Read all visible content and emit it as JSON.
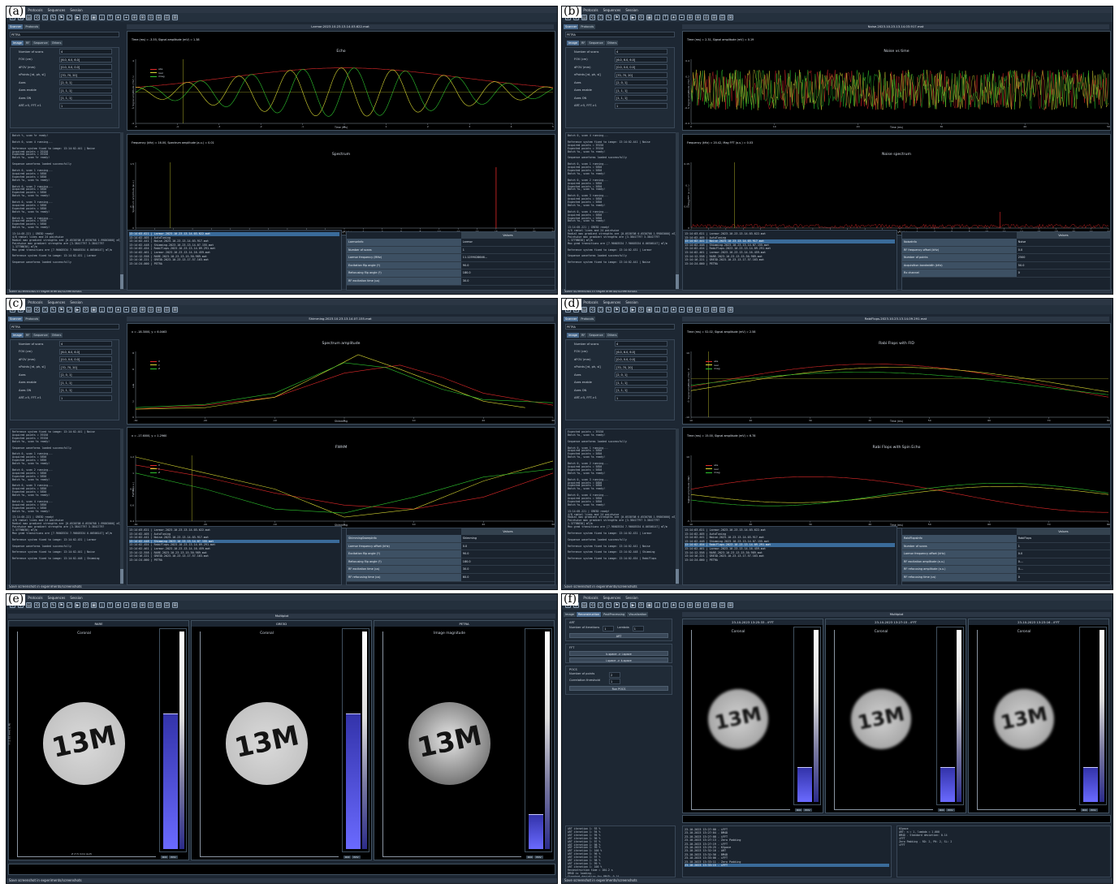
{
  "common": {
    "menu": [
      "Scanner",
      "Protocols",
      "Sequences",
      "Session"
    ],
    "tabs_main": [
      "Scanner",
      "Protocols"
    ],
    "sequence_select": "PETRA",
    "seq_tabs": [
      "Image",
      "RF",
      "Sequence",
      "Others"
    ],
    "status": "Save screenshot in experiments/screenshots",
    "params": [
      {
        "label": "Number of scans",
        "value": "4"
      },
      {
        "label": "FOV (cm)",
        "value": "[6.0, 6.0, 6.0]"
      },
      {
        "label": "dFOV (mm)",
        "value": "[0.0, 0.0, 0.0]"
      },
      {
        "label": "nPoints [rd, ph, sl]",
        "value": "[70, 70, 20]"
      },
      {
        "label": "Axes",
        "value": "[2, 0, 1]"
      },
      {
        "label": "Axes enable",
        "value": "[1, 1, 1]"
      },
      {
        "label": "Axes ON",
        "value": "[1, 1, 1]"
      },
      {
        "label": "ART->5, FFT->1",
        "value": "1"
      }
    ],
    "values_header": "Values"
  },
  "panels": {
    "a": {
      "tag": "(a)",
      "file_title": "Larmor.2023.10.23.13.14.03.622.mat",
      "console": "Batch %, scan %r ready!\n\nBatch 0, scan 4 running...\n\nReference system fixed to image: 13:14:02.441 | Noise\nAcquired points = 39150\nExpected points = 39150\nBatch %s, scan %r ready!\n\nSequence waveforms loaded successfully\n\nBatch 0, scan 1 running...\nAcquired points = 5850\nExpected points = 5850\nBatch %s, scan %s ready!\n\nBatch 0, scan 2 running...\nAcquired points = 5850\nExpected points = 5850\nBatch %s, scan %s ready!\n\nBatch 0, scan 3 running...\nAcquired points = 5850\nExpected points = 5850\nBatch %s, scan %s ready!\n\nBatch 0, scan 4 running...\nAcquired points = 5850\nExpected points = 5850\nBatch %s, scan %s ready!\n\n13:14:05.221 | GRE3D ready!\n4/8 radial lines and 24 pointwise\nRadial max gradient strengths are [0.0530708 0.0530708 1.99803000] mT/m\nPointwise max gradient strengths are [3.38417797 3.38417797\n1.37798630] mT/m\nMax grad transitions are [7.96603534 7.96603534 6.06506147] mT/m\n\nReference system fixed to image: 13:14:02.431 | Larmor\n\nSequence waveforms loaded successfully",
      "plot1": {
        "info": "Time (ms) = -3.55, Signal amplitude (mV) = 1.38",
        "heading": "Echo",
        "legend": [
          "abs",
          "real",
          "imag"
        ],
        "xlabel": "Time (ms)",
        "ylabel": "Signal amplitude (mV)"
      },
      "plot2": {
        "info": "Frequency (kHz) = 16.00, Spectrum amplitude (a.u.) = 0.01",
        "heading": "Spectrum",
        "xlabel": "Frequency (kHz)",
        "ylabel": "Spectrum amplitude (a.u.)"
      },
      "history": [
        "13:14:03.621 | Larmor.2023.10.23.13.14.03.622.mat",
        "13:14:02.405 | AutoTuning",
        "13:14:02.441 | Noise.2023.10.23.13.14.03.917.mat",
        "13:14:02.448 | Shimming.2023.10.23.13.14.07.155.mat",
        "13:14:02.454 | RabiFlops.2023.10.23.13.14.09.291.mat",
        "13:14:02.461 | Larmor.2023.10.23.13.14.16.459.mat",
        "13:14:12.558 | RARE.2023.10.23.13.15.30.989.mat",
        "13:14:16.221 | GRE3D.2023.10.23.13.17.57.163.mat",
        "13:14:24.000 | PETRA"
      ],
      "table": [
        [
          "LarmorInfo",
          "Larmor"
        ],
        [
          "Number of scans",
          "1"
        ],
        [
          "Larmor frequency (MHz)",
          "11.1259028646..."
        ],
        [
          "Excitation flip angle (º)",
          "90.0"
        ],
        [
          "Refocusing flip angle (º)",
          "180.0"
        ],
        [
          "RF excitation time (us)",
          "30.0"
        ]
      ]
    },
    "b": {
      "tag": "(b)",
      "file_title": "Noise.2023.10.23.13.14.03.917.mat",
      "console": "Batch 0, scan 4 running...\n\nReference system fixed to image: 13:14:02.441 | Noise\nAcquired points = 39150\nExpected points = 39150\nBatch %s, scan %s ready!\n\nSequence waveforms loaded successfully\n\nBatch 0, scan 1 running...\nAcquired points = 5850\nExpected points = 5850\nBatch %s, scan %s ready!\n\nBatch 0, scan 2 running...\nAcquired points = 5850\nExpected points = 5850\nBatch %s, scan %s ready!\n\nBatch 0, scan 3 running...\nAcquired points = 5850\nExpected points = 5850\nBatch %s, scan %s ready!\n\nBatch 0, scan 4 running...\nAcquired points = 5850\nExpected points = 5850\nBatch %s, scan %s ready!\n\n13:14:05.221 | GRE3D ready!\n4/8 radial lines and 24 pointwise\nRadial max gradient strengths are [0.0530708 0.0530708 1.99803000] mT/m\nPointwise max gradient strengths are [3.38417797 3.38417797\n1.37798630] mT/m\nMax grad transitions are [7.96603534 7.96603534 6.06506147] mT/m\n\nReference system fixed to image: 13:14:02.431 | Larmor\n\nSequence waveforms loaded successfully\n\nReference system fixed to image: 13:14:02.441 | Noise",
      "plot1": {
        "info": "Time (ms) = 2.31, Signal amplitude (mV) = 0.19",
        "heading": "Noise vs time",
        "xlabel": "Time (ms)",
        "ylabel": "Signal amplitude (mV)"
      },
      "plot2": {
        "info": "Frequency (kHz) = 20.42, Mag FFT (a.u.) = 0.03",
        "heading": "Noise spectrum",
        "xlabel": "Frequency (kHz)",
        "ylabel": "Mag FFT (a.u.)"
      },
      "history": [
        "13:14:03.621 | Larmor.2023.10.23.13.14.03.622.mat",
        "13:14:02.405 | AutoTuning",
        "13:14:02.441 | Noise.2023.10.23.13.14.03.917.mat",
        "13:14:02.448 | Shimming.2023.10.23.13.14.07.155.mat",
        "13:14:02.454 | RabiFlops.2023.10.23.13.14.09.291.mat",
        "13:14:02.461 | Larmor.2023.10.23.13.14.16.459.mat",
        "13:14:12.558 | RARE.2023.10.23.13.15.30.989.mat",
        "13:14:16.221 | GRE3D.2023.10.23.13.17.57.163.mat",
        "13:14:24.000 | PETRA"
      ],
      "table": [
        [
          "NoiseInfo",
          "Noise"
        ],
        [
          "RF frequency offset (kHz)",
          "0.0"
        ],
        [
          "Number of points",
          "2500"
        ],
        [
          "Acquisition bandwidth (kHz)",
          "50.0"
        ],
        [
          "Rx channel",
          "0"
        ]
      ]
    },
    "c": {
      "tag": "(c)",
      "file_title": "Shimming.2023.10.23.13.14.07.155.mat",
      "console": "Reference system fixed to image: 13:14:02.441 | Noise\nAcquired points = 39150\nExpected points = 39150\nBatch %s, scan %s ready!\n\nSequence waveforms loaded successfully\n\nBatch 0, scan 1 running...\nAcquired points = 5850\nExpected points = 5850\nBatch %s, scan %s ready!\n\nBatch 0, scan 2 running...\nAcquired points = 5850\nExpected points = 5850\nBatch %s, scan %s ready!\n\nBatch 0, scan 3 running...\nAcquired points = 5850\nExpected points = 5850\nBatch %s, scan %s ready!\n\nBatch 0, scan 4 running...\nAcquired points = 5850\nExpected points = 5850\nBatch %s, scan %s ready!\n\n13:14:05.221 | GRE3D ready!\n4/8 radial lines and 24 pointwise\nRadial max gradient strengths are [0.0530708 0.0530708 1.99803000] mT/m\nPointwise max gradient strengths are [3.38417797 3.38417797\n1.37798630] mT/m\nMax grad transitions are [7.96603534 7.96603534 6.06506147] mT/m\n\nReference system fixed to image: 13:14:02.431 | Larmor\n\nSequence waveforms loaded successfully\n\nReference system fixed to image: 13:14:02.441 | Noise\n\nReference system fixed to image: 13:14:02.448 | Shimming",
      "plot1": {
        "info": "x = -18.3000, y = 6.0463",
        "heading": "Spectrum amplitude",
        "legend": [
          "X",
          "Y",
          "Z"
        ],
        "xlabel": "Shimming",
        "ylabel": "a.u."
      },
      "plot2": {
        "info": "x = -17.6000, y = 1.2960",
        "heading": "FWHM",
        "legend": [
          "X",
          "Y",
          "Z"
        ],
        "xlabel": "Shimming",
        "ylabel": "FWHM (a.u.)"
      },
      "history": [
        "13:14:03.621 | Larmor.2023.10.23.13.14.03.622.mat",
        "13:14:02.405 | AutoTuning",
        "13:14:02.441 | Noise.2023.10.23.13.14.03.917.mat",
        "13:14:02.448 | Shimming.2023.10.23.13.14.07.155.mat",
        "13:14:02.454 | RabiFlops.2023.10.23.13.14.09.291.mat",
        "13:14:02.461 | Larmor.2023.10.23.13.14.16.459.mat",
        "13:14:12.558 | RARE.2023.10.23.13.15.30.989.mat",
        "13:14:16.221 | GRE3D.2023.10.23.13.17.57.163.mat",
        "13:14:24.000 | PETRA"
      ],
      "table": [
        [
          "ShimmingSweepInfo",
          "Shimming"
        ],
        [
          "Larmor frequency offset (kHz)",
          "0.0"
        ],
        [
          "Excitation flip angle (º)",
          "90.0"
        ],
        [
          "Refocusing flip angle (º)",
          "180.0"
        ],
        [
          "RF excitation time (us)",
          "30.0"
        ],
        [
          "RF refocusing time (us)",
          "60.0"
        ]
      ]
    },
    "d": {
      "tag": "(d)",
      "file_title": "RabiFlops.2023.10.23.13.14.09.291.mat",
      "console": "Expected points = 39150\nBatch %s, scan %s ready!\n\nSequence waveforms loaded successfully\n\nBatch 0, scan 1 running...\nAcquired points = 5850\nExpected points = 5850\nBatch %s, scan %s ready!\n\nBatch 0, scan 2 running...\nAcquired points = 5850\nExpected points = 5850\nBatch %s, scan %s ready!\n\nBatch 0, scan 3 running...\nAcquired points = 5850\nExpected points = 5850\nBatch %s, scan %s ready!\n\nBatch 0, scan 4 running...\nAcquired points = 5850\nExpected points = 5850\nBatch %s, scan %s ready!\n\n13:14:05.221 | GRE3D ready!\n4/8 radial lines and 24 pointwise\nRadial max gradient strengths are [0.0530708 0.0530708 1.99803000] mT/m\nPointwise max gradient strengths are [3.38417797 3.38417797\n1.37798630] mT/m\nMax grad transitions are [7.96603534 7.96603534 6.06506147] mT/m\n\nReference system fixed to image: 13:14:02.431 | Larmor\n\nSequence waveforms loaded successfully\n\nReference system fixed to image: 13:14:02.441 | Noise\n\nReference system fixed to image: 13:14:02.448 | Shimming\n\nReference system fixed to image: 13:14:02.454 | RabiFlops",
      "plot1": {
        "info": "Time (ms) = 52.02, Signal amplitude (mV) = 2.58",
        "heading": "Rabi Flops with FID",
        "legend": [
          "abs",
          "real",
          "imag"
        ],
        "xlabel": "Time (ms)",
        "ylabel": "Signal amplitude (mV)"
      },
      "plot2": {
        "info": "Time (ms) = 15.00, Signal amplitude (mV) = 6.78",
        "heading": "Rabi Flops with Spin Echo",
        "legend": [
          "abs",
          "real",
          "imag"
        ],
        "xlabel": "Time (ms)",
        "ylabel": "Signal amplitude (mV)"
      },
      "history": [
        "13:14:03.621 | Larmor.2023.10.23.13.14.03.622.mat",
        "13:14:02.405 | AutoTuning",
        "13:14:02.441 | Noise.2023.10.23.13.14.03.917.mat",
        "13:14:02.448 | Shimming.2023.10.23.13.14.07.155.mat",
        "13:14:02.454 | RabiFlops.2023.10.23.13.14.09.291.mat",
        "13:14:02.461 | Larmor.2023.10.23.13.14.16.459.mat",
        "13:14:12.558 | RARE.2023.10.23.13.15.30.989.mat",
        "13:14:16.221 | GRE3D.2023.10.23.13.17.57.163.mat",
        "13:14:24.000 | PETRA"
      ],
      "table": [
        [
          "RabiFlopsInfo",
          "RabiFlops"
        ],
        [
          "Number of scans",
          "1"
        ],
        [
          "Larmor frequency offset (kHz)",
          "0.0"
        ],
        [
          "RF excitation amplitude (a.u.)",
          "0...."
        ],
        [
          "RF refocusing amplitude (a.u.)",
          "0...."
        ],
        [
          "RF refocusing time (us)",
          "0"
        ]
      ]
    },
    "e": {
      "tag": "(e)",
      "title": "Multiplot",
      "images": [
        {
          "name": "RARE",
          "label": "Coronal"
        },
        {
          "name": "GRE3D",
          "label": "Coronal"
        },
        {
          "name": "PETRA",
          "label": "Image magnitude"
        }
      ],
      "phantom_text": "13M",
      "axis_y": "Y (1.93 mm) (L-R)",
      "axis_x": "Z (7.5 mm) (A-P)",
      "cbar_btns": [
        "ROI",
        "POV"
      ]
    },
    "f": {
      "tag": "(f)",
      "tabs": [
        "Image",
        "Reconstruction",
        "PostProcessing",
        "Visualization"
      ],
      "art_title": "ART",
      "art_fields": [
        {
          "label": "Number of iterations",
          "value": "1"
        },
        {
          "label": "Lambda",
          "value": "1"
        }
      ],
      "art_btn": "ART",
      "fft_title": "FFT",
      "fft_btns": [
        "k-space -> i-space",
        "i-space -> k-space"
      ],
      "pocs_title": "POCS",
      "pocs_fields": [
        {
          "label": "Number of points",
          "value": "2"
        },
        {
          "label": "Correlation threshold",
          "value": "1"
        }
      ],
      "pocs_btn": "Run POCS",
      "title": "Multiplot",
      "images": [
        {
          "name": "23-10-2023 13:25:33 - iFFT",
          "label": "Coronal"
        },
        {
          "name": "23-10-2023 13:27:15 - iFFT",
          "label": "Coronal"
        },
        {
          "name": "23-10-2023 13:23:16 - iFFT",
          "label": "Coronal"
        }
      ],
      "phantom_text": "13M",
      "console": "ART iteration 1: 93 %\nART iteration 1: 94 %\nART iteration 1: 95 %\nART iteration 1: 96 %\nART iteration 1: 97 %\nART iteration 1: 98 %\nART iteration 1: 99 %\nART iteration 1: 100 %\nART iteration 1: 96 %\nART iteration 1: 97 %\nART iteration 1: 98 %\nART iteration 1: 99 %\nART iteration 1: 100 %\nReconstruction time = 104.2 s\nBM4D is loading...\nStandard deviation for BM4D: 0.14",
      "history": [
        "23-10-2023 13:27:00 - iFFT",
        "23-10-2023 13:27:04 - BM4D",
        "23-10-2023 13:27:08 - iFFT",
        "23-10-2023 13:27:13 - Zero Padding",
        "23-10-2023 13:27:19 - iFFT",
        "23-10-2023 13:29:25 - KSpace",
        "23-10-2023 13:32:16 - ART",
        "23-10-2023 13:32:56 - BM4D",
        "23-10-2023 13:33:06 - iFFT",
        "23-10-2023 13:33:11 - Zero Padding",
        "23-10-2023 13:33:15 - iFFT"
      ],
      "info": "KSpace\nART: n = 1, lambda = 1.000\nBM4D - Standard deviation: 0.14\niFFT\nZero Padding - RD: 2, PH: 2, SL: 2\niFFT",
      "cbar_btns": [
        "ROI",
        "POV"
      ]
    }
  }
}
